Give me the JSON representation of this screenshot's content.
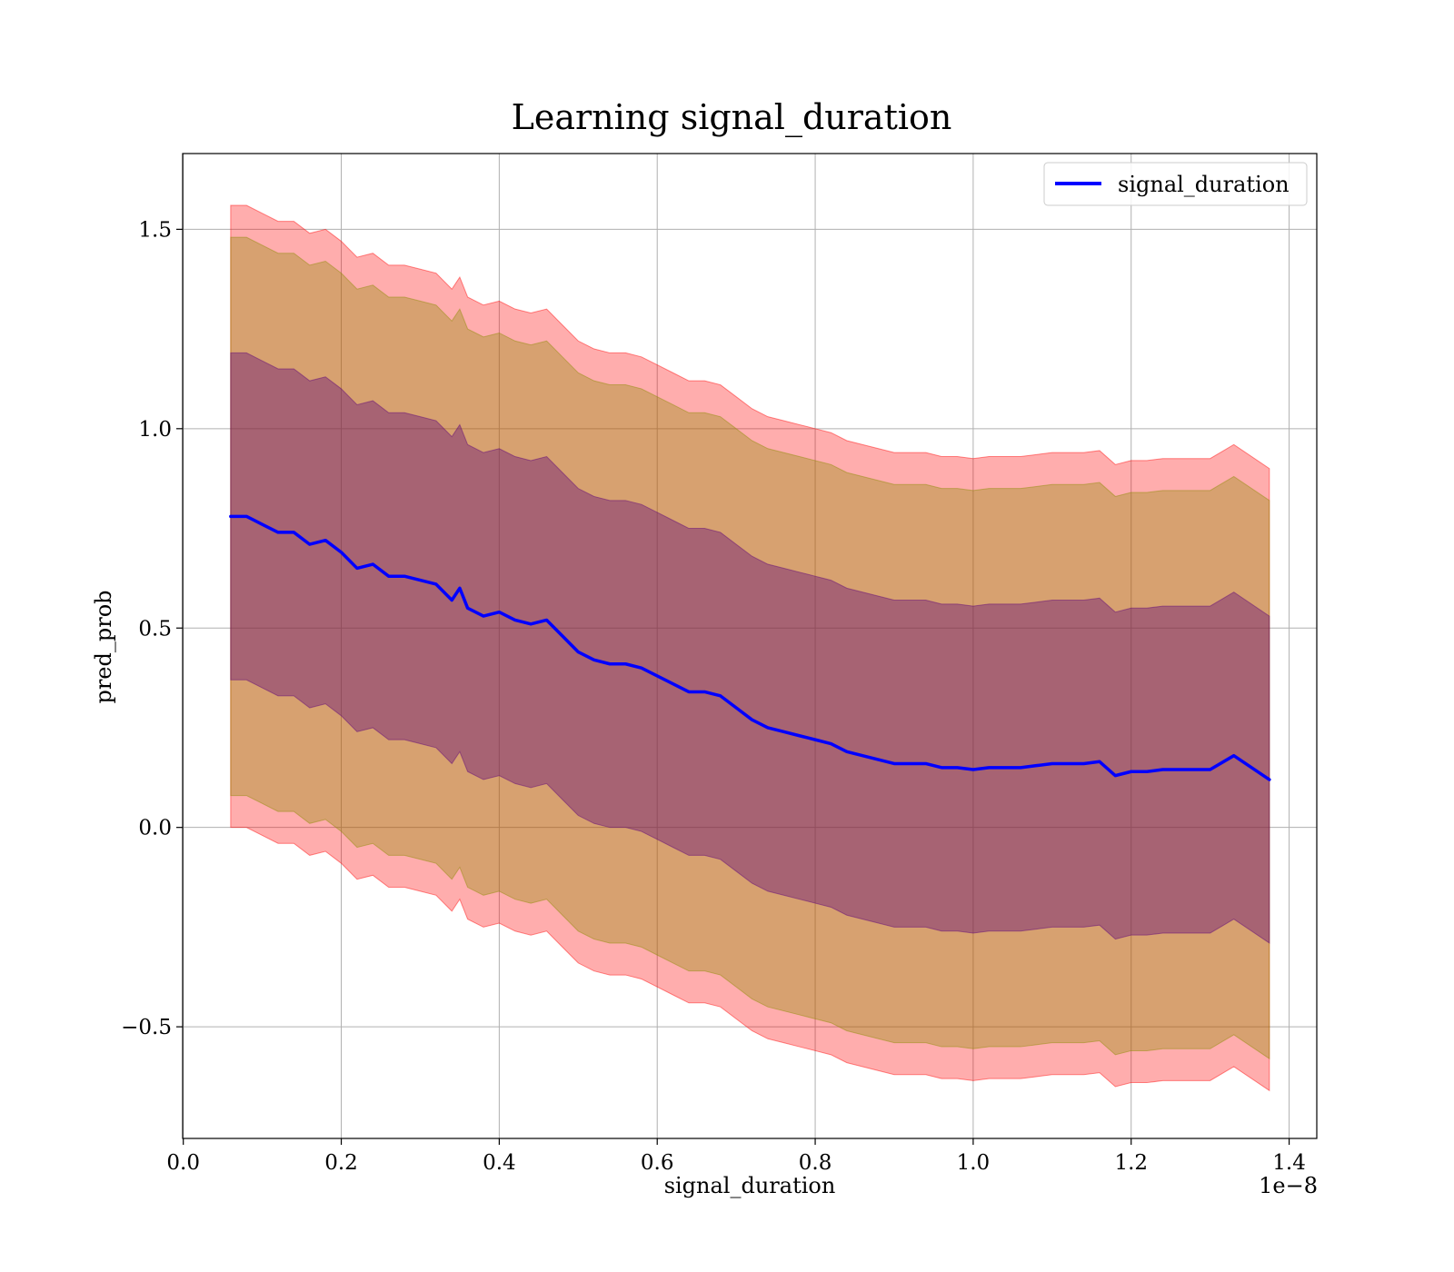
{
  "chart_data": {
    "type": "line",
    "title": "Learning signal_duration",
    "xlabel": "signal_duration",
    "ylabel": "pred_prob",
    "x_offset_label": "1e−8",
    "xlim": [
      -0.0008,
      1.435
    ],
    "ylim": [
      -0.78,
      1.69
    ],
    "x_ticks": [
      0.0,
      0.2,
      0.4,
      0.6,
      0.8,
      1.0,
      1.2,
      1.4
    ],
    "x_tick_labels": [
      "0.0",
      "0.2",
      "0.4",
      "0.6",
      "0.8",
      "1.0",
      "1.2",
      "1.4"
    ],
    "y_ticks": [
      -0.5,
      0.0,
      0.5,
      1.0,
      1.5
    ],
    "y_tick_labels": [
      "−0.5",
      "0.0",
      "0.5",
      "1.0",
      "1.5"
    ],
    "grid": true,
    "legend": {
      "position": "top-right",
      "entries": [
        "signal_duration"
      ]
    },
    "colors": {
      "line": "#0000ff",
      "outer_band": "#ff0000",
      "middle_band": "#8b8b00",
      "inner_band": "#5a007a"
    },
    "series": [
      {
        "name": "signal_duration",
        "x": [
          0.06,
          0.08,
          0.1,
          0.12,
          0.14,
          0.16,
          0.18,
          0.2,
          0.22,
          0.24,
          0.26,
          0.28,
          0.3,
          0.32,
          0.34,
          0.35,
          0.36,
          0.38,
          0.4,
          0.42,
          0.44,
          0.46,
          0.48,
          0.5,
          0.52,
          0.54,
          0.56,
          0.58,
          0.6,
          0.62,
          0.64,
          0.66,
          0.68,
          0.7,
          0.72,
          0.74,
          0.76,
          0.78,
          0.8,
          0.82,
          0.84,
          0.86,
          0.88,
          0.9,
          0.92,
          0.94,
          0.96,
          0.98,
          1.0,
          1.02,
          1.04,
          1.06,
          1.08,
          1.1,
          1.12,
          1.14,
          1.16,
          1.18,
          1.2,
          1.22,
          1.24,
          1.26,
          1.28,
          1.3,
          1.33,
          1.375
        ],
        "y": [
          0.78,
          0.78,
          0.76,
          0.74,
          0.74,
          0.71,
          0.72,
          0.69,
          0.65,
          0.66,
          0.63,
          0.63,
          0.62,
          0.61,
          0.57,
          0.6,
          0.55,
          0.53,
          0.54,
          0.52,
          0.51,
          0.52,
          0.48,
          0.44,
          0.42,
          0.41,
          0.41,
          0.4,
          0.38,
          0.36,
          0.34,
          0.34,
          0.33,
          0.3,
          0.27,
          0.25,
          0.24,
          0.23,
          0.22,
          0.21,
          0.19,
          0.18,
          0.17,
          0.16,
          0.16,
          0.16,
          0.15,
          0.15,
          0.145,
          0.15,
          0.15,
          0.15,
          0.155,
          0.16,
          0.16,
          0.16,
          0.165,
          0.13,
          0.14,
          0.14,
          0.145,
          0.145,
          0.145,
          0.145,
          0.18,
          0.12
        ],
        "bands": [
          {
            "level": "outer",
            "lower_offset": -0.78,
            "upper_offset": 0.78
          },
          {
            "level": "middle",
            "lower_offset": -0.7,
            "upper_offset": 0.7
          },
          {
            "level": "inner",
            "lower_offset": -0.41,
            "upper_offset": 0.41
          }
        ]
      }
    ]
  }
}
